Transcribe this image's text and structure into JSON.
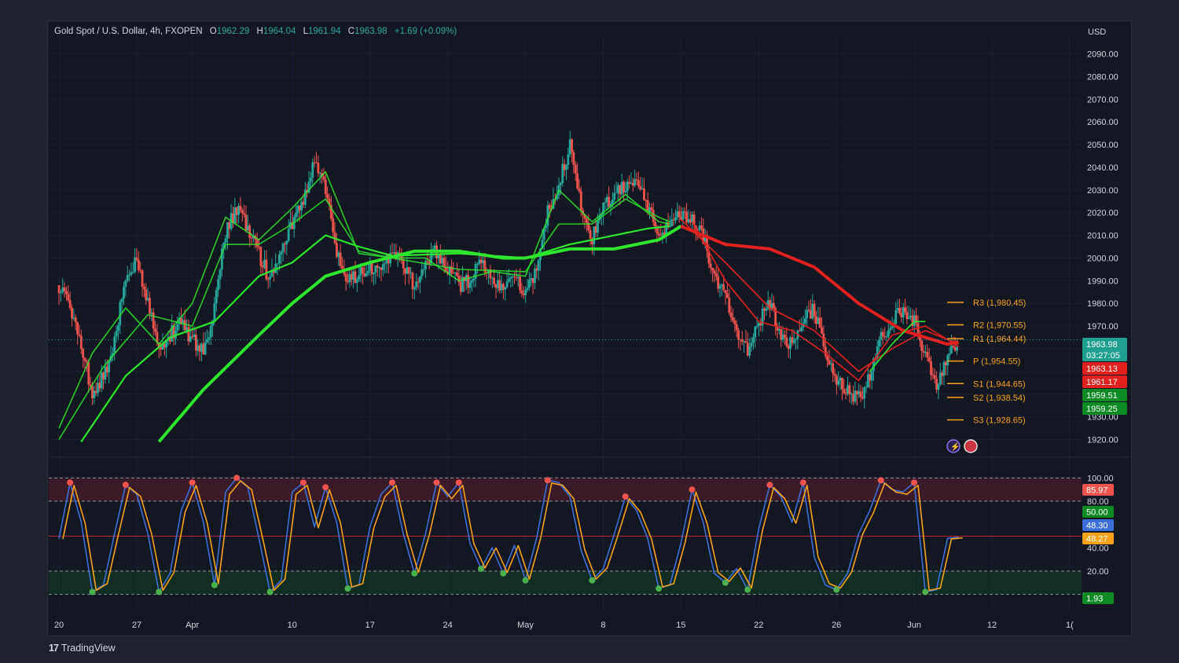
{
  "header": {
    "symbol": "Gold Spot / U.S. Dollar, 4h, FXOPEN",
    "open_label": "O",
    "open": "1962.29",
    "high_label": "H",
    "high": "1964.04",
    "low_label": "L",
    "low": "1961.94",
    "close_label": "C",
    "close": "1963.98",
    "change": "+1.69 (+0.09%)"
  },
  "footer": {
    "brand": "TradingView"
  },
  "colors": {
    "up": "#26a69a",
    "down": "#ef5350",
    "pivot": "#f7a21b",
    "green_ma": "#2de62d",
    "red_ma": "#e0211f",
    "stoch_k": "#3d6fd8",
    "stoch_d": "#f7a21b"
  },
  "chart_data": [
    {
      "type": "candlestick",
      "currency": "USD",
      "y_ticks": [
        1920,
        1930,
        1940,
        1950,
        1960,
        1970,
        1980,
        1990,
        2000,
        2010,
        2020,
        2030,
        2040,
        2050,
        2060,
        2070,
        2080,
        2090
      ],
      "y_tick_labels": [
        "1920.00",
        "1930.00",
        "1940.00",
        "1950.00",
        "1960.00",
        "1970.00",
        "1980.00",
        "1990.00",
        "2000.00",
        "2010.00",
        "2020.00",
        "2030.00",
        "2040.00",
        "2050.00",
        "2060.00",
        "2070.00",
        "2080.00",
        "2090.00"
      ],
      "ylim": [
        1916,
        2094
      ],
      "x_ticks": [
        "20",
        "27",
        "Apr",
        "10",
        "17",
        "24",
        "May",
        "8",
        "15",
        "22",
        "26",
        "Jun",
        "12",
        "1("
      ],
      "x_tick_days": [
        0,
        7,
        12,
        21,
        28,
        35,
        42,
        49,
        56,
        63,
        70,
        77,
        84,
        91
      ],
      "x_range_days": [
        -0.5,
        91.5
      ],
      "price_path": [
        [
          0,
          1988
        ],
        [
          1,
          1978
        ],
        [
          2,
          1962
        ],
        [
          3,
          1940
        ],
        [
          4,
          1948
        ],
        [
          5,
          1962
        ],
        [
          6,
          1993
        ],
        [
          7,
          1998
        ],
        [
          8,
          1982
        ],
        [
          9,
          1960
        ],
        [
          10,
          1966
        ],
        [
          11,
          1972
        ],
        [
          12,
          1964
        ],
        [
          13,
          1958
        ],
        [
          14,
          1978
        ],
        [
          15,
          2012
        ],
        [
          16,
          2022
        ],
        [
          17,
          2014
        ],
        [
          18,
          2002
        ],
        [
          19,
          1990
        ],
        [
          20,
          2006
        ],
        [
          21,
          2016
        ],
        [
          22,
          2026
        ],
        [
          23,
          2044
        ],
        [
          24,
          2030
        ],
        [
          25,
          2002
        ],
        [
          26,
          1990
        ],
        [
          27,
          1992
        ],
        [
          28,
          1996
        ],
        [
          29,
          1994
        ],
        [
          30,
          2004
        ],
        [
          31,
          1998
        ],
        [
          32,
          1988
        ],
        [
          33,
          1998
        ],
        [
          34,
          2003
        ],
        [
          35,
          1996
        ],
        [
          36,
          1988
        ],
        [
          37,
          1990
        ],
        [
          38,
          1998
        ],
        [
          39,
          1992
        ],
        [
          40,
          1986
        ],
        [
          41,
          1992
        ],
        [
          42,
          1984
        ],
        [
          43,
          1996
        ],
        [
          44,
          2020
        ],
        [
          45,
          2032
        ],
        [
          46,
          2050
        ],
        [
          47,
          2024
        ],
        [
          48,
          2008
        ],
        [
          49,
          2022
        ],
        [
          50,
          2028
        ],
        [
          51,
          2032
        ],
        [
          52,
          2036
        ],
        [
          53,
          2022
        ],
        [
          54,
          2010
        ],
        [
          55,
          2016
        ],
        [
          56,
          2019
        ],
        [
          57,
          2018
        ],
        [
          58,
          2010
        ],
        [
          59,
          1992
        ],
        [
          60,
          1982
        ],
        [
          61,
          1966
        ],
        [
          62,
          1958
        ],
        [
          63,
          1972
        ],
        [
          64,
          1980
        ],
        [
          65,
          1966
        ],
        [
          66,
          1962
        ],
        [
          67,
          1972
        ],
        [
          68,
          1978
        ],
        [
          69,
          1958
        ],
        [
          70,
          1946
        ],
        [
          71,
          1942
        ],
        [
          72,
          1938
        ],
        [
          73,
          1948
        ],
        [
          74,
          1964
        ],
        [
          75,
          1972
        ],
        [
          76,
          1978
        ],
        [
          77,
          1972
        ],
        [
          78,
          1958
        ],
        [
          79,
          1944
        ],
        [
          80,
          1958
        ],
        [
          81,
          1964
        ]
      ],
      "moving_averages": [
        {
          "color": "#2de62d",
          "points": [
            [
              0,
              1925
            ],
            [
              3,
              1958
            ],
            [
              6,
              1978
            ],
            [
              9,
              1962
            ],
            [
              12,
              1980
            ],
            [
              15,
              2018
            ],
            [
              18,
              2008
            ],
            [
              21,
              2022
            ],
            [
              24,
              2038
            ],
            [
              27,
              2002
            ],
            [
              30,
              2000
            ],
            [
              33,
              2000
            ],
            [
              36,
              1990
            ],
            [
              39,
              1994
            ],
            [
              42,
              1992
            ],
            [
              45,
              2030
            ],
            [
              48,
              2016
            ],
            [
              51,
              2028
            ],
            [
              54,
              2016
            ],
            [
              55,
              2015
            ]
          ]
        },
        {
          "color": "#2de62d",
          "points": [
            [
              0,
              1920
            ],
            [
              4,
              1952
            ],
            [
              8,
              1975
            ],
            [
              12,
              1970
            ],
            [
              15,
              2006
            ],
            [
              18,
              2006
            ],
            [
              21,
              2015
            ],
            [
              24,
              2026
            ],
            [
              27,
              2003
            ],
            [
              30,
              2000
            ],
            [
              36,
              1995
            ],
            [
              42,
              1994
            ],
            [
              45,
              2015
            ],
            [
              48,
              2015
            ],
            [
              51,
              2026
            ],
            [
              54,
              2018
            ],
            [
              55,
              2016
            ]
          ]
        },
        {
          "color": "#2de62d",
          "points": [
            [
              2,
              1919
            ],
            [
              6,
              1948
            ],
            [
              10,
              1965
            ],
            [
              14,
              1972
            ],
            [
              18,
              1992
            ],
            [
              21,
              1998
            ],
            [
              24,
              2010
            ],
            [
              27,
              2005
            ],
            [
              30,
              2001
            ],
            [
              36,
              2002
            ],
            [
              42,
              2000
            ],
            [
              46,
              2006
            ],
            [
              50,
              2010
            ],
            [
              53,
              2013
            ],
            [
              55,
              2014
            ]
          ]
        },
        {
          "color": "#2de62d",
          "points": [
            [
              9,
              1919
            ],
            [
              13,
              1942
            ],
            [
              18,
              1966
            ],
            [
              21,
              1980
            ],
            [
              24,
              1992
            ],
            [
              28,
              1998
            ],
            [
              32,
              2003
            ],
            [
              36,
              2003
            ],
            [
              40,
              2000
            ],
            [
              42,
              2000
            ],
            [
              46,
              2004
            ],
            [
              50,
              2004
            ],
            [
              54,
              2008
            ],
            [
              56,
              2014
            ]
          ]
        },
        {
          "color": "#e0211f",
          "points": [
            [
              56,
              2014
            ],
            [
              60,
              2006
            ],
            [
              64,
              2004
            ],
            [
              68,
              1996
            ],
            [
              72,
              1980
            ],
            [
              76,
              1968
            ],
            [
              80,
              1962
            ],
            [
              81,
              1963
            ]
          ]
        },
        {
          "color": "#e0211f",
          "points": [
            [
              56,
              2017
            ],
            [
              60,
              1998
            ],
            [
              64,
              1978
            ],
            [
              68,
              1968
            ],
            [
              72,
              1950
            ],
            [
              75,
              1960
            ],
            [
              78,
              1968
            ],
            [
              81,
              1962
            ]
          ]
        },
        {
          "color": "#e0211f",
          "points": [
            [
              57,
              2016
            ],
            [
              60,
              1990
            ],
            [
              63,
              1972
            ],
            [
              66,
              1968
            ],
            [
              69,
              1958
            ],
            [
              72,
              1946
            ],
            [
              75,
              1966
            ],
            [
              78,
              1970
            ],
            [
              81,
              1961
            ]
          ]
        },
        {
          "color": "#2de62d",
          "points": [
            [
              73,
              1950
            ],
            [
              75,
              1962
            ],
            [
              77,
              1972
            ],
            [
              78,
              1972
            ]
          ]
        }
      ],
      "pivots": [
        {
          "label": "R3 (1,980.45)",
          "value": 1980.45
        },
        {
          "label": "R2 (1,970.55)",
          "value": 1970.55
        },
        {
          "label": "R1 (1,964.44)",
          "value": 1964.44
        },
        {
          "label": "P (1,954.55)",
          "value": 1954.55
        },
        {
          "label": "S1 (1,944.65)",
          "value": 1944.65
        },
        {
          "label": "S2 (1,938.54)",
          "value": 1938.54
        },
        {
          "label": "S3 (1,928.65)",
          "value": 1928.65
        }
      ],
      "price_badges": [
        {
          "text": "1963.98",
          "sub": "03:27:05",
          "value": 1963.98,
          "color": "#1e9f8f"
        },
        {
          "text": "1963.13",
          "value": 1963.13,
          "color": "#e0211f"
        },
        {
          "text": "1961.17",
          "value": 1961.17,
          "color": "#e0211f"
        },
        {
          "text": "1959.51",
          "value": 1959.51,
          "color": "#0e8a24"
        },
        {
          "text": "1959.25",
          "value": 1959.25,
          "color": "#0e8a24"
        }
      ]
    },
    {
      "type": "line",
      "indicator": "stochastic",
      "y_ticks": [
        20,
        40,
        80,
        100
      ],
      "y_tick_labels": [
        "20.00",
        "40.00",
        "80.00",
        "100.00"
      ],
      "ylim": [
        -5,
        105
      ],
      "levels": [
        0,
        20,
        50,
        80,
        100
      ],
      "k_path": [
        [
          0,
          48
        ],
        [
          1,
          96
        ],
        [
          2,
          62
        ],
        [
          3,
          2
        ],
        [
          4,
          8
        ],
        [
          5,
          52
        ],
        [
          6,
          94
        ],
        [
          7,
          86
        ],
        [
          8,
          52
        ],
        [
          9,
          2
        ],
        [
          10,
          18
        ],
        [
          11,
          72
        ],
        [
          12,
          96
        ],
        [
          13,
          62
        ],
        [
          14,
          8
        ],
        [
          15,
          88
        ],
        [
          16,
          100
        ],
        [
          17,
          92
        ],
        [
          18,
          48
        ],
        [
          19,
          2
        ],
        [
          20,
          12
        ],
        [
          21,
          88
        ],
        [
          22,
          96
        ],
        [
          23,
          58
        ],
        [
          24,
          92
        ],
        [
          25,
          62
        ],
        [
          26,
          5
        ],
        [
          27,
          8
        ],
        [
          28,
          58
        ],
        [
          29,
          86
        ],
        [
          30,
          96
        ],
        [
          31,
          52
        ],
        [
          32,
          18
        ],
        [
          33,
          52
        ],
        [
          34,
          96
        ],
        [
          35,
          84
        ],
        [
          36,
          96
        ],
        [
          37,
          44
        ],
        [
          38,
          22
        ],
        [
          39,
          40
        ],
        [
          40,
          18
        ],
        [
          41,
          42
        ],
        [
          42,
          12
        ],
        [
          43,
          48
        ],
        [
          44,
          98
        ],
        [
          45,
          96
        ],
        [
          46,
          84
        ],
        [
          47,
          38
        ],
        [
          48,
          12
        ],
        [
          49,
          22
        ],
        [
          50,
          52
        ],
        [
          51,
          84
        ],
        [
          52,
          72
        ],
        [
          53,
          48
        ],
        [
          54,
          5
        ],
        [
          55,
          8
        ],
        [
          56,
          44
        ],
        [
          57,
          90
        ],
        [
          58,
          62
        ],
        [
          59,
          18
        ],
        [
          60,
          10
        ],
        [
          61,
          22
        ],
        [
          62,
          4
        ],
        [
          63,
          56
        ],
        [
          64,
          94
        ],
        [
          65,
          84
        ],
        [
          66,
          62
        ],
        [
          67,
          96
        ],
        [
          68,
          32
        ],
        [
          69,
          8
        ],
        [
          70,
          4
        ],
        [
          71,
          18
        ],
        [
          72,
          52
        ],
        [
          73,
          72
        ],
        [
          74,
          98
        ],
        [
          75,
          90
        ],
        [
          76,
          88
        ],
        [
          77,
          96
        ],
        [
          78,
          2
        ],
        [
          79,
          4
        ],
        [
          80,
          48
        ],
        [
          81,
          49
        ]
      ],
      "series_markers": [
        {
          "text": "85.97",
          "value": 85.97,
          "color": "#ef5350"
        },
        {
          "text": "50.00",
          "value": 50.0,
          "color": "#0e8a24"
        },
        {
          "text": "48.30",
          "value": 48.3,
          "color": "#3d6fd8"
        },
        {
          "text": "48.27",
          "value": 48.27,
          "color": "#f7a21b"
        },
        {
          "text": "1.93",
          "value": 1.93,
          "color": "#0e8a24"
        }
      ]
    }
  ]
}
